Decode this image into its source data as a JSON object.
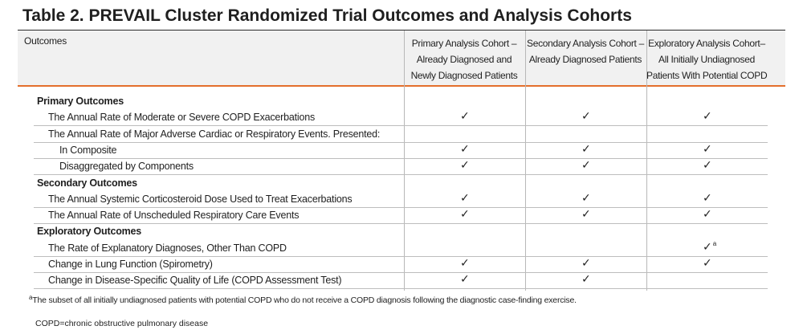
{
  "title": "Table 2. PREVAIL Cluster Randomized Trial Outcomes and Analysis Cohorts",
  "columns": {
    "outcomes": "Outcomes",
    "primary": [
      "Primary Analysis Cohort –",
      "Already Diagnosed and",
      "Newly Diagnosed Patients"
    ],
    "secondary": [
      "Secondary Analysis Cohort –",
      "Already Diagnosed Patients"
    ],
    "exploratory": [
      "Exploratory Analysis Cohort–",
      "All Initially Undiagnosed",
      "Patients With Potential COPD"
    ]
  },
  "check_symbol": "✓",
  "rows": [
    {
      "label": "Primary Outcomes",
      "type": "section"
    },
    {
      "label": "The Annual Rate of Moderate or Severe COPD Exacerbations",
      "type": "item",
      "primary": true,
      "secondary": true,
      "exploratory": true
    },
    {
      "label": "The Annual Rate of Major Adverse Cardiac or Respiratory Events. Presented:",
      "type": "item",
      "primary": false,
      "secondary": false,
      "exploratory": false
    },
    {
      "label": "In Composite",
      "type": "subitem",
      "primary": true,
      "secondary": true,
      "exploratory": true
    },
    {
      "label": "Disaggregated by Components",
      "type": "subitem",
      "primary": true,
      "secondary": true,
      "exploratory": true
    },
    {
      "label": "Secondary Outcomes",
      "type": "section"
    },
    {
      "label": "The Annual Systemic Corticosteroid Dose Used to Treat Exacerbations",
      "type": "item",
      "primary": true,
      "secondary": true,
      "exploratory": true
    },
    {
      "label": "The Annual Rate of Unscheduled Respiratory Care Events",
      "type": "item",
      "primary": true,
      "secondary": true,
      "exploratory": true
    },
    {
      "label": "Exploratory Outcomes",
      "type": "section"
    },
    {
      "label": "The Rate of Explanatory Diagnoses, Other Than COPD",
      "type": "item",
      "primary": false,
      "secondary": false,
      "exploratory": true,
      "exploratory_note": "a"
    },
    {
      "label": "Change in Lung Function (Spirometry)",
      "type": "item",
      "primary": true,
      "secondary": true,
      "exploratory": true
    },
    {
      "label": "Change in Disease-Specific Quality of Life (COPD Assessment Test)",
      "type": "item",
      "primary": true,
      "secondary": true,
      "exploratory": false
    }
  ],
  "footnote": {
    "marker": "a",
    "text": "The subset of all initially undiagnosed patients with potential COPD who do not receive a COPD diagnosis following the diagnostic case-finding exercise."
  },
  "abbreviations": "COPD=chronic obstructive pulmonary disease"
}
